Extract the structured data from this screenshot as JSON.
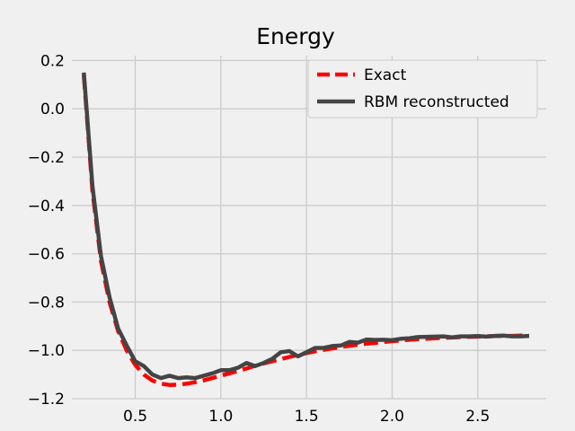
{
  "chart_data": {
    "type": "line",
    "title": "Energy",
    "xlabel": "",
    "ylabel": "",
    "xlim": [
      0.13,
      2.9
    ],
    "ylim": [
      -1.2,
      0.22
    ],
    "xticks": [
      0.5,
      1.0,
      1.5,
      2.0,
      2.5
    ],
    "xtick_labels": [
      "0.5",
      "1.0",
      "1.5",
      "2.0",
      "2.5"
    ],
    "yticks": [
      -1.2,
      -1.0,
      -0.8,
      -0.6,
      -0.4,
      -0.2,
      0.0,
      0.2
    ],
    "ytick_labels": [
      "−1.2",
      "−1.0",
      "−0.8",
      "−0.6",
      "−0.4",
      "−0.2",
      "0.0",
      "0.2"
    ],
    "grid": true,
    "legend_position": "top-right",
    "series": [
      {
        "name": "Exact",
        "color": "#ff0000",
        "style": "dashed",
        "x": [
          0.2,
          0.25,
          0.3,
          0.35,
          0.4,
          0.45,
          0.5,
          0.55,
          0.6,
          0.65,
          0.7,
          0.75,
          0.8,
          0.85,
          0.9,
          0.95,
          1.0,
          1.05,
          1.1,
          1.15,
          1.2,
          1.25,
          1.3,
          1.35,
          1.4,
          1.45,
          1.5,
          1.55,
          1.6,
          1.65,
          1.7,
          1.75,
          1.8,
          1.85,
          1.9,
          1.95,
          2.0,
          2.05,
          2.1,
          2.15,
          2.2,
          2.25,
          2.3,
          2.35,
          2.4,
          2.45,
          2.5,
          2.55,
          2.6,
          2.65,
          2.7,
          2.75,
          2.8
        ],
        "y": [
          0.14,
          -0.34,
          -0.63,
          -0.8,
          -0.92,
          -1.0,
          -1.06,
          -1.1,
          -1.125,
          -1.138,
          -1.143,
          -1.142,
          -1.138,
          -1.132,
          -1.124,
          -1.115,
          -1.105,
          -1.095,
          -1.085,
          -1.075,
          -1.064,
          -1.054,
          -1.045,
          -1.036,
          -1.027,
          -1.019,
          -1.011,
          -1.004,
          -0.998,
          -0.992,
          -0.986,
          -0.981,
          -0.977,
          -0.972,
          -0.969,
          -0.965,
          -0.962,
          -0.959,
          -0.956,
          -0.954,
          -0.952,
          -0.95,
          -0.948,
          -0.947,
          -0.945,
          -0.944,
          -0.943,
          -0.942,
          -0.941,
          -0.94,
          -0.94,
          -0.939,
          -0.939
        ]
      },
      {
        "name": "RBM reconstructed",
        "color": "#444444",
        "style": "solid",
        "x": [
          0.2,
          0.25,
          0.3,
          0.35,
          0.4,
          0.45,
          0.5,
          0.55,
          0.6,
          0.65,
          0.7,
          0.75,
          0.8,
          0.85,
          0.9,
          0.95,
          1.0,
          1.05,
          1.1,
          1.15,
          1.2,
          1.25,
          1.3,
          1.35,
          1.4,
          1.45,
          1.5,
          1.55,
          1.6,
          1.65,
          1.7,
          1.75,
          1.8,
          1.85,
          1.9,
          1.95,
          2.0,
          2.05,
          2.1,
          2.15,
          2.2,
          2.25,
          2.3,
          2.35,
          2.4,
          2.45,
          2.5,
          2.55,
          2.6,
          2.65,
          2.7,
          2.75,
          2.8
        ],
        "y": [
          0.15,
          -0.32,
          -0.61,
          -0.78,
          -0.91,
          -0.98,
          -1.045,
          -1.065,
          -1.1,
          -1.115,
          -1.105,
          -1.115,
          -1.112,
          -1.115,
          -1.105,
          -1.095,
          -1.082,
          -1.082,
          -1.072,
          -1.052,
          -1.065,
          -1.052,
          -1.035,
          -1.008,
          -1.003,
          -1.025,
          -1.008,
          -0.99,
          -0.99,
          -0.982,
          -0.98,
          -0.965,
          -0.968,
          -0.955,
          -0.957,
          -0.956,
          -0.958,
          -0.952,
          -0.95,
          -0.945,
          -0.944,
          -0.943,
          -0.942,
          -0.946,
          -0.942,
          -0.942,
          -0.941,
          -0.943,
          -0.94,
          -0.939,
          -0.942,
          -0.942,
          -0.94
        ]
      }
    ]
  }
}
